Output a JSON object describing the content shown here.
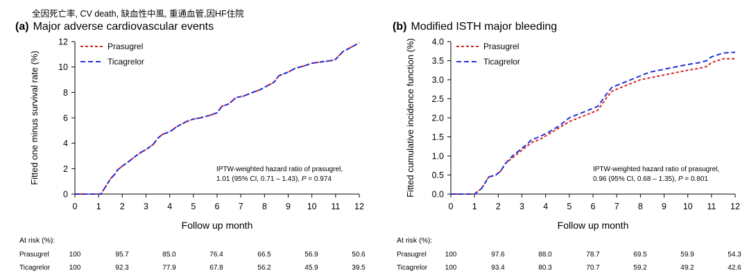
{
  "header_note": "全因死亡率, CV death, 缺血性中風, 重通血管,因HF住院",
  "series_colors": {
    "Prasugrel": "#d42020",
    "Ticagrelor": "#1f2fd6"
  },
  "chart_data": [
    {
      "type": "line",
      "panel_letter": "(a)",
      "title": "Major adverse cardiovascular events",
      "xlabel": "Follow up month",
      "ylabel": "Fitted one minus survival rate (%)",
      "xlim": [
        0,
        12
      ],
      "ylim": [
        0,
        12
      ],
      "xticks": [
        "0",
        "1",
        "2",
        "3",
        "4",
        "5",
        "6",
        "7",
        "8",
        "9",
        "10",
        "11",
        "12"
      ],
      "yticks": [
        "0",
        "2",
        "4",
        "6",
        "8",
        "10",
        "12"
      ],
      "legend_position": "top-left",
      "annotation_line1": "IPTW-weighted hazard ratio of prasugrel,",
      "annotation_line2_prefix": "1.01 (95% CI, 0.71 – 1.43), ",
      "annotation_p": "P",
      "annotation_line2_suffix": " = 0.974",
      "series": [
        {
          "name": "Prasugrel",
          "x": [
            0,
            1.1,
            1.3,
            1.5,
            1.7,
            1.8,
            2.0,
            2.3,
            2.5,
            2.8,
            3.0,
            3.3,
            3.5,
            3.7,
            4.0,
            4.3,
            4.7,
            5.0,
            5.3,
            5.7,
            6.0,
            6.2,
            6.5,
            6.8,
            7.1,
            7.5,
            7.8,
            8.2,
            8.4,
            8.6,
            9.0,
            9.3,
            9.7,
            10.0,
            10.4,
            10.8,
            11.0,
            11.3,
            11.6,
            12.0
          ],
          "y": [
            0,
            0,
            0.6,
            1.2,
            1.6,
            1.9,
            2.2,
            2.6,
            2.9,
            3.3,
            3.5,
            3.9,
            4.4,
            4.7,
            4.9,
            5.3,
            5.7,
            5.9,
            6.0,
            6.2,
            6.4,
            6.9,
            7.1,
            7.6,
            7.7,
            8.0,
            8.2,
            8.6,
            8.8,
            9.3,
            9.6,
            9.9,
            10.1,
            10.3,
            10.4,
            10.5,
            10.6,
            11.2,
            11.5,
            11.9
          ]
        },
        {
          "name": "Ticagrelor",
          "x": [
            0,
            1.1,
            1.3,
            1.5,
            1.7,
            1.8,
            2.0,
            2.3,
            2.5,
            2.8,
            3.0,
            3.3,
            3.5,
            3.7,
            4.0,
            4.3,
            4.7,
            5.0,
            5.3,
            5.7,
            6.0,
            6.2,
            6.5,
            6.8,
            7.1,
            7.5,
            7.8,
            8.2,
            8.4,
            8.6,
            9.0,
            9.3,
            9.7,
            10.0,
            10.4,
            10.8,
            11.0,
            11.3,
            11.6,
            12.0
          ],
          "y": [
            0,
            0,
            0.6,
            1.2,
            1.6,
            1.9,
            2.2,
            2.6,
            2.9,
            3.3,
            3.5,
            3.9,
            4.4,
            4.7,
            4.9,
            5.3,
            5.7,
            5.9,
            6.0,
            6.2,
            6.4,
            6.9,
            7.1,
            7.6,
            7.7,
            8.0,
            8.2,
            8.6,
            8.8,
            9.3,
            9.6,
            9.9,
            10.1,
            10.3,
            10.4,
            10.5,
            10.6,
            11.2,
            11.5,
            11.9
          ]
        }
      ],
      "risk_table": {
        "label": "At risk (%):",
        "x": [
          0,
          2,
          4,
          6,
          8,
          10,
          12
        ],
        "rows": [
          {
            "name": "Prasugrel",
            "values": [
              "100",
              "95.7",
              "85.0",
              "76.4",
              "66.5",
              "56.9",
              "50.6"
            ]
          },
          {
            "name": "Ticagrelor",
            "values": [
              "100",
              "92.3",
              "77.9",
              "67.8",
              "56.2",
              "45.9",
              "39.5"
            ]
          }
        ]
      }
    },
    {
      "type": "line",
      "panel_letter": "(b)",
      "title": "Modified ISTH major bleeding",
      "xlabel": "Follow up month",
      "ylabel": "Fitted cumulative incidence function (%)",
      "xlim": [
        0,
        12
      ],
      "ylim": [
        0,
        4
      ],
      "xticks": [
        "0",
        "1",
        "2",
        "3",
        "4",
        "5",
        "6",
        "7",
        "8",
        "9",
        "10",
        "11",
        "12"
      ],
      "yticks": [
        "0.0",
        "0.5",
        "1.0",
        "1.5",
        "2.0",
        "2.5",
        "3.0",
        "3.5",
        "4.0"
      ],
      "legend_position": "top-left",
      "annotation_line1": "IPTW-weighted hazard ratio of prasugrel,",
      "annotation_line2_prefix": "0.96 (95% CI, 0.68 – 1.35), ",
      "annotation_p": "P",
      "annotation_line2_suffix": " = 0.801",
      "series": [
        {
          "name": "Prasugrel",
          "x": [
            0,
            1.0,
            1.3,
            1.6,
            1.9,
            2.1,
            2.3,
            2.6,
            2.9,
            3.2,
            3.4,
            3.8,
            4.2,
            4.6,
            5.0,
            5.4,
            5.8,
            6.2,
            6.6,
            6.8,
            7.2,
            7.6,
            8.0,
            8.4,
            8.8,
            9.2,
            9.6,
            10.0,
            10.5,
            10.8,
            11.0,
            11.5,
            12.0
          ],
          "y": [
            0,
            0,
            0.15,
            0.45,
            0.5,
            0.6,
            0.8,
            0.95,
            1.1,
            1.25,
            1.35,
            1.45,
            1.6,
            1.75,
            1.9,
            2.0,
            2.1,
            2.2,
            2.55,
            2.7,
            2.8,
            2.9,
            3.0,
            3.05,
            3.1,
            3.15,
            3.2,
            3.25,
            3.3,
            3.35,
            3.45,
            3.55,
            3.55
          ]
        },
        {
          "name": "Ticagrelor",
          "x": [
            0,
            1.0,
            1.3,
            1.6,
            1.9,
            2.1,
            2.3,
            2.6,
            2.9,
            3.2,
            3.4,
            3.8,
            4.2,
            4.6,
            5.0,
            5.4,
            5.8,
            6.2,
            6.6,
            6.8,
            7.2,
            7.6,
            8.0,
            8.4,
            8.8,
            9.2,
            9.6,
            10.0,
            10.5,
            10.8,
            11.0,
            11.5,
            12.0
          ],
          "y": [
            0,
            0,
            0.15,
            0.45,
            0.5,
            0.6,
            0.8,
            1.0,
            1.15,
            1.3,
            1.42,
            1.52,
            1.65,
            1.8,
            2.0,
            2.1,
            2.2,
            2.3,
            2.65,
            2.8,
            2.9,
            3.0,
            3.1,
            3.2,
            3.25,
            3.3,
            3.35,
            3.4,
            3.45,
            3.5,
            3.6,
            3.7,
            3.72
          ]
        }
      ],
      "risk_table": {
        "label": "At risk (%):",
        "x": [
          0,
          2,
          4,
          6,
          8,
          10,
          12
        ],
        "rows": [
          {
            "name": "Prasugrel",
            "values": [
              "100",
              "97.6",
              "88.0",
              "78.7",
              "69.5",
              "59.9",
              "54.3"
            ]
          },
          {
            "name": "Ticagrelor",
            "values": [
              "100",
              "93.4",
              "80.3",
              "70.7",
              "59.2",
              "49.2",
              "42.6"
            ]
          }
        ]
      }
    }
  ]
}
